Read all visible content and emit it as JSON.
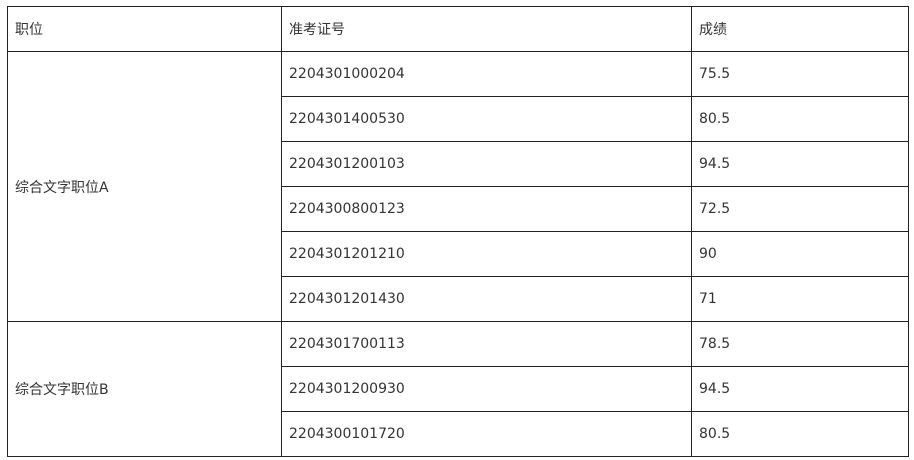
{
  "headers": {
    "position": "职位",
    "exam_id": "准考证号",
    "score": "成绩"
  },
  "groups": [
    {
      "position": "综合文字职位A",
      "rows": [
        {
          "exam_id": "2204301000204",
          "score": "75.5"
        },
        {
          "exam_id": "2204301400530",
          "score": "80.5"
        },
        {
          "exam_id": "2204301200103",
          "score": "94.5"
        },
        {
          "exam_id": "2204300800123",
          "score": "72.5"
        },
        {
          "exam_id": "2204301201210",
          "score": "90"
        },
        {
          "exam_id": "2204301201430",
          "score": "71"
        }
      ]
    },
    {
      "position": "综合文字职位B",
      "rows": [
        {
          "exam_id": "2204301700113",
          "score": "78.5"
        },
        {
          "exam_id": "2204301200930",
          "score": "94.5"
        },
        {
          "exam_id": "2204300101720",
          "score": "80.5"
        }
      ]
    }
  ]
}
